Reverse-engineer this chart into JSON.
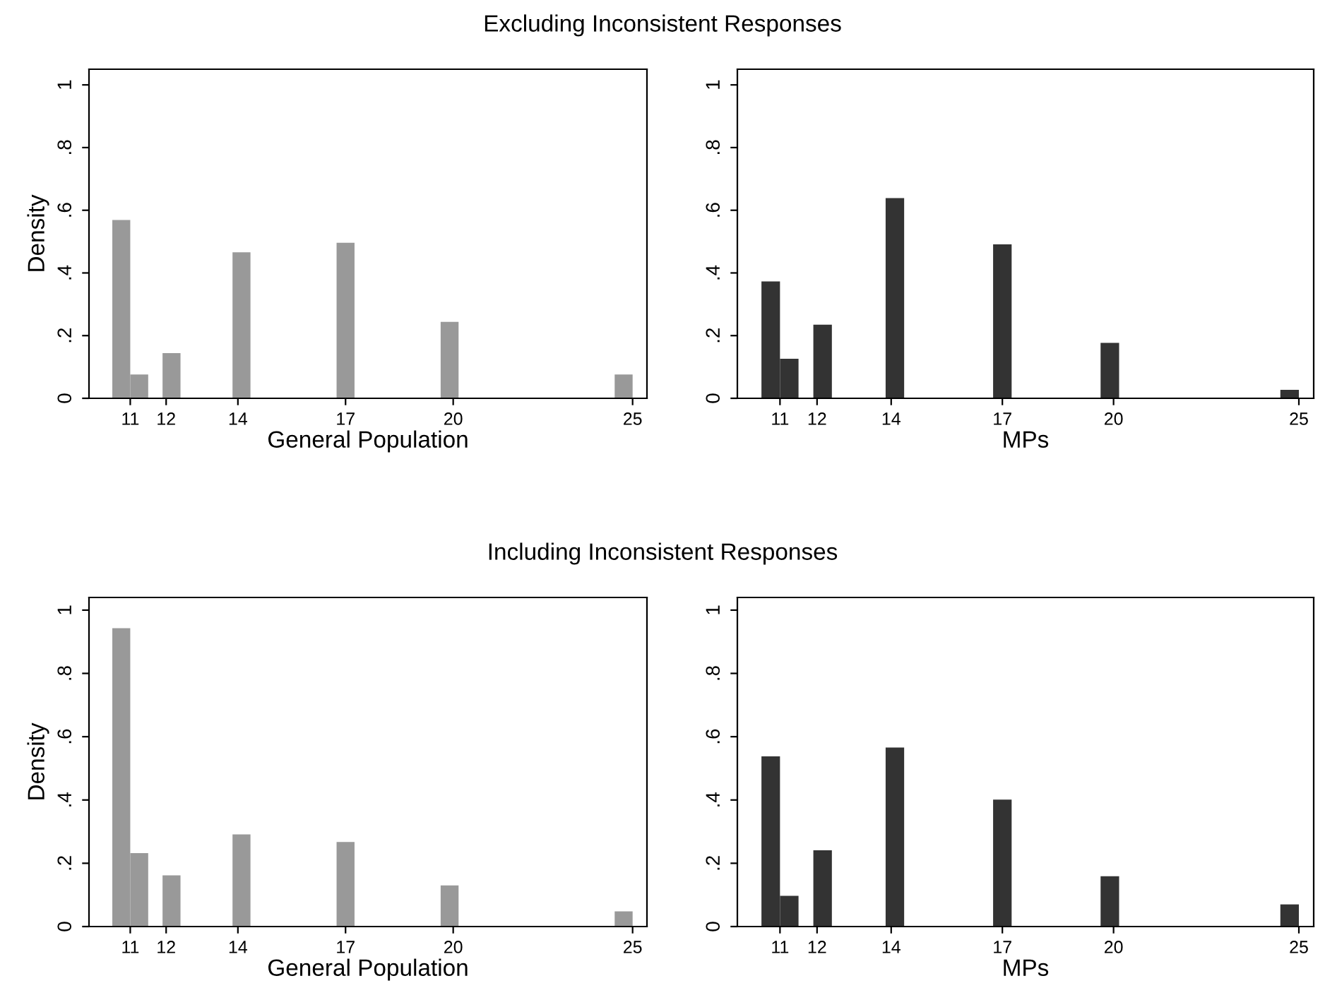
{
  "chart_data": [
    {
      "type": "histogram",
      "title": "Excluding Inconsistent Responses",
      "xlabel": "General Population",
      "ylabel": "Density",
      "color": "#999999",
      "bins": [
        10.5,
        11,
        11.5,
        11.9,
        12.4,
        13.85,
        14.35,
        16.75,
        17.25,
        19.65,
        20.15,
        24.5,
        25
      ],
      "values": [
        0.569,
        0.076,
        0,
        0.144,
        0,
        0.466,
        0,
        0.496,
        0,
        0.244,
        0,
        0.076
      ],
      "xlim": [
        9.85,
        25.4
      ],
      "ylim": [
        0,
        1.05
      ],
      "xticks": [
        11,
        12,
        14,
        17,
        20,
        25
      ],
      "yticks": [
        0,
        {
          "value": 0.2,
          "label": ".2"
        },
        {
          "value": 0.4,
          "label": ".4"
        },
        {
          "value": 0.6,
          "label": ".6"
        },
        {
          "value": 0.8,
          "label": ".8"
        },
        1
      ],
      "grid": false
    },
    {
      "type": "histogram",
      "xlabel": "MPs",
      "color": "#333333",
      "bins": [
        10.5,
        11,
        11.5,
        11.9,
        12.4,
        13.85,
        14.35,
        16.75,
        17.25,
        19.65,
        20.15,
        24.5,
        25
      ],
      "values": [
        0.373,
        0.126,
        0,
        0.235,
        0,
        0.639,
        0,
        0.491,
        0,
        0.177,
        0,
        0.027
      ],
      "xlim": [
        9.85,
        25.4
      ],
      "ylim": [
        0,
        1.05
      ],
      "xticks": [
        11,
        12,
        14,
        17,
        20,
        25
      ],
      "yticks": [
        0,
        {
          "value": 0.2,
          "label": ".2"
        },
        {
          "value": 0.4,
          "label": ".4"
        },
        {
          "value": 0.6,
          "label": ".6"
        },
        {
          "value": 0.8,
          "label": ".8"
        },
        1
      ],
      "grid": false
    },
    {
      "type": "histogram",
      "title": "Including Inconsistent Responses",
      "xlabel": "General Population",
      "ylabel": "Density",
      "color": "#999999",
      "bins": [
        10.5,
        11,
        11.5,
        11.9,
        12.4,
        13.85,
        14.35,
        16.75,
        17.25,
        19.65,
        20.15,
        24.5,
        25
      ],
      "values": [
        0.943,
        0.232,
        0,
        0.162,
        0,
        0.291,
        0,
        0.267,
        0,
        0.13,
        0,
        0.048
      ],
      "xlim": [
        9.85,
        25.4
      ],
      "ylim": [
        0,
        1.04
      ],
      "xticks": [
        11,
        12,
        14,
        17,
        20,
        25
      ],
      "yticks": [
        0,
        {
          "value": 0.2,
          "label": ".2"
        },
        {
          "value": 0.4,
          "label": ".4"
        },
        {
          "value": 0.6,
          "label": ".6"
        },
        {
          "value": 0.8,
          "label": ".8"
        },
        1
      ],
      "grid": false
    },
    {
      "type": "histogram",
      "xlabel": "MPs",
      "color": "#333333",
      "bins": [
        10.5,
        11,
        11.5,
        11.9,
        12.4,
        13.85,
        14.35,
        16.75,
        17.25,
        19.65,
        20.15,
        24.5,
        25
      ],
      "values": [
        0.538,
        0.097,
        0,
        0.241,
        0,
        0.566,
        0,
        0.401,
        0,
        0.159,
        0,
        0.07
      ],
      "xlim": [
        9.85,
        25.4
      ],
      "ylim": [
        0,
        1.04
      ],
      "xticks": [
        11,
        12,
        14,
        17,
        20,
        25
      ],
      "yticks": [
        0,
        {
          "value": 0.2,
          "label": ".2"
        },
        {
          "value": 0.4,
          "label": ".4"
        },
        {
          "value": 0.6,
          "label": ".6"
        },
        {
          "value": 0.8,
          "label": ".8"
        },
        1
      ],
      "grid": false
    }
  ]
}
